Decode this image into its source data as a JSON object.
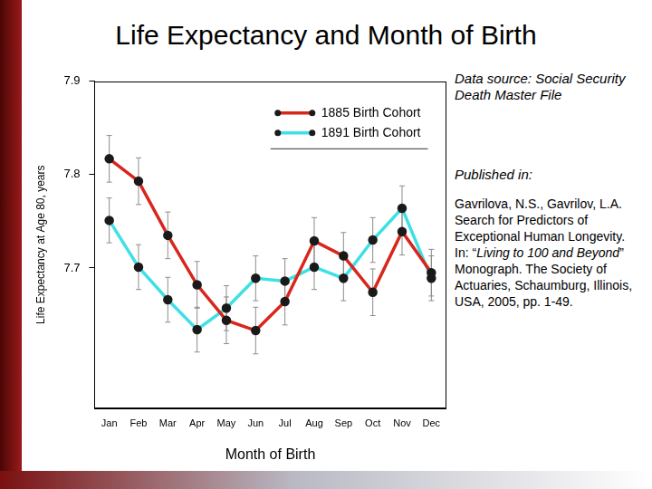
{
  "chart_data": {
    "type": "line",
    "title": "Life Expectancy and Month of Birth",
    "x_label": "Month of Birth",
    "y_label": "Life Expectancy at Age 80, years",
    "categories": [
      "Jan",
      "Feb",
      "Mar",
      "Apr",
      "May",
      "Jun",
      "Jul",
      "Aug",
      "Sep",
      "Oct",
      "Nov",
      "Dec"
    ],
    "series": [
      {
        "name": "1885 Birth Cohort",
        "color": "#d8261c",
        "marker": "circle",
        "values": [
          7.817,
          7.793,
          7.735,
          7.682,
          7.644,
          7.633,
          7.664,
          7.729,
          7.713,
          7.674,
          7.739,
          7.695
        ],
        "errors": [
          0.025,
          0.025,
          0.025,
          0.025,
          0.025,
          0.025,
          0.025,
          0.025,
          0.025,
          0.025,
          0.025,
          0.025
        ]
      },
      {
        "name": "1891 Birth Cohort",
        "color": "#3ee0e6",
        "marker": "circle",
        "values": [
          7.751,
          7.701,
          7.666,
          7.634,
          7.657,
          7.689,
          7.686,
          7.701,
          7.689,
          7.73,
          7.764,
          7.689
        ],
        "errors": [
          0.024,
          0.024,
          0.024,
          0.024,
          0.024,
          0.024,
          0.024,
          0.024,
          0.024,
          0.024,
          0.024,
          0.024
        ]
      }
    ],
    "ylim": [
      7.55,
      7.9
    ],
    "yticks": [
      7.7,
      7.8,
      7.9
    ],
    "grid": false,
    "legend": "upper right",
    "annotations": [
      "Data source: Social Security Death Master File",
      "Published in:",
      "Gavrilova, N.S., Gavrilov, L.A. Search for Predictors of Exceptional Human Longevity. In: “Living to 100 and Beyond” Monograph. The Society of Actuaries, Schaumburg, Illinois, USA, 2005, pp. 1-49."
    ]
  }
}
